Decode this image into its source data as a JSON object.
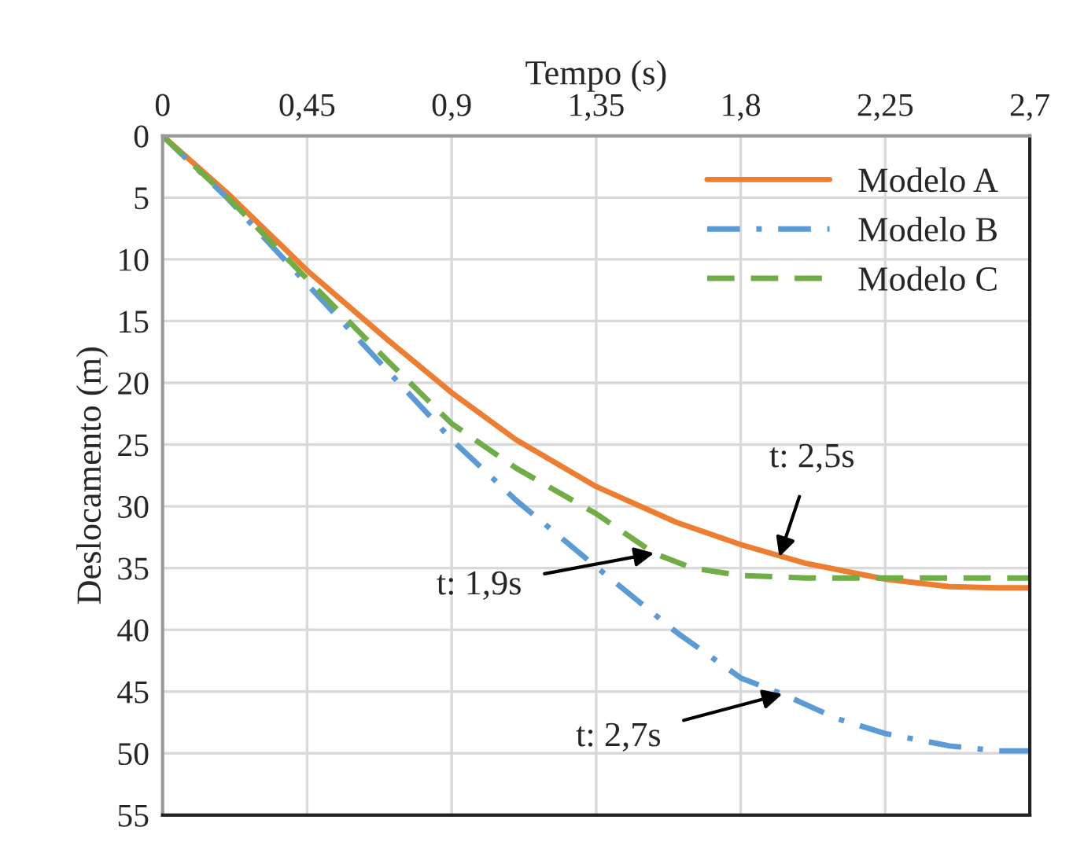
{
  "chart_data": {
    "type": "line",
    "xlabel": "Tempo (s)",
    "ylabel": "Deslocamento (m)",
    "series": [
      {
        "name": "Modelo A",
        "color": "#ed7d31",
        "line_style": "solid",
        "x": [
          0,
          0.2,
          0.45,
          0.7,
          0.9,
          1.1,
          1.35,
          1.6,
          1.8,
          2.0,
          2.25,
          2.45,
          2.6,
          2.7
        ],
        "values": [
          0,
          4.6,
          10.9,
          16.5,
          20.8,
          24.6,
          28.4,
          31.3,
          33.1,
          34.6,
          35.9,
          36.5,
          36.6,
          36.6
        ]
      },
      {
        "name": "Modelo B",
        "color": "#5b9bd5",
        "line_style": "dashdot",
        "x": [
          0,
          0.2,
          0.45,
          0.7,
          0.9,
          1.1,
          1.35,
          1.6,
          1.8,
          1.93,
          2.1,
          2.25,
          2.45,
          2.6,
          2.7
        ],
        "values": [
          0,
          5.0,
          12.0,
          19.0,
          24.6,
          29.5,
          34.9,
          40.2,
          43.9,
          45.2,
          47.2,
          48.4,
          49.4,
          49.8,
          49.8
        ]
      },
      {
        "name": "Modelo C",
        "color": "#70ad47",
        "line_style": "dashed",
        "x": [
          0,
          0.2,
          0.45,
          0.7,
          0.9,
          1.1,
          1.35,
          1.53,
          1.65,
          1.8,
          2.0,
          2.25,
          2.7
        ],
        "values": [
          0,
          4.9,
          11.6,
          18.2,
          23.3,
          26.9,
          30.6,
          33.8,
          35.0,
          35.6,
          35.8,
          35.8,
          35.8
        ]
      }
    ],
    "xlim": [
      0,
      2.7
    ],
    "ylim": [
      55,
      0
    ],
    "xticks": [
      0,
      {
        "value": 0.45,
        "label": "0,45"
      },
      {
        "value": 0.9,
        "label": "0,9"
      },
      {
        "value": 1.35,
        "label": "1,35"
      },
      {
        "value": 1.8,
        "label": "1,8"
      },
      {
        "value": 2.25,
        "label": "2,25"
      },
      {
        "value": 2.7,
        "label": "2,7"
      }
    ],
    "yticks": [
      0,
      5,
      10,
      15,
      20,
      25,
      30,
      35,
      40,
      45,
      50,
      55
    ],
    "grid": true,
    "legend": "top right",
    "annotations": [
      {
        "text": "t: 2,5s",
        "x": 1.92,
        "y": 34.1
      },
      {
        "text": "t: 1,9s",
        "x": 1.53,
        "y": 33.8
      },
      {
        "text": "t: 2,7s",
        "x": 1.93,
        "y": 45.2
      }
    ]
  }
}
